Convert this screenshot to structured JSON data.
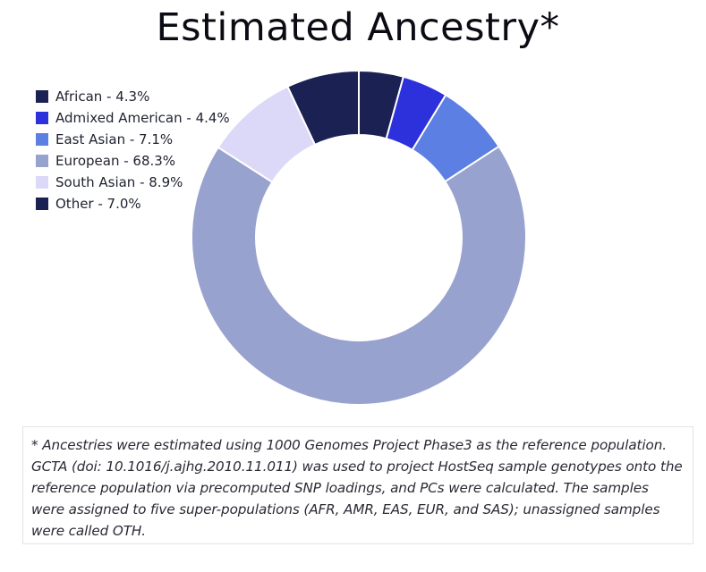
{
  "chart_data": {
    "type": "pie",
    "title": "Estimated Ancestry*",
    "categories": [
      "African",
      "Admixed American",
      "East Asian",
      "European",
      "South Asian",
      "Other"
    ],
    "values": [
      4.3,
      4.4,
      7.1,
      68.3,
      8.9,
      7.0
    ],
    "unit": "%",
    "legend_labels": [
      "African - 4.3%",
      "Admixed American - 4.4%",
      "East Asian - 7.1%",
      "European - 68.3%",
      "South Asian - 8.9%",
      "Other - 7.0%"
    ],
    "colors": [
      "#1b2253",
      "#2c31db",
      "#5b7fe3",
      "#98a2ce",
      "#dcd8f8",
      "#1b2253"
    ],
    "legend_position": "top-left"
  },
  "footnote": "* Ancestries were estimated using 1000 Genomes Project Phase3 as the reference population. GCTA (doi: 10.1016/j.ajhg.2010.11.011) was used to project HostSeq sample genotypes onto the reference population via precomputed SNP loadings, and PCs were calculated. The samples were assigned to five super-populations (AFR, AMR, EAS, EUR, and SAS); unassigned samples were called OTH."
}
